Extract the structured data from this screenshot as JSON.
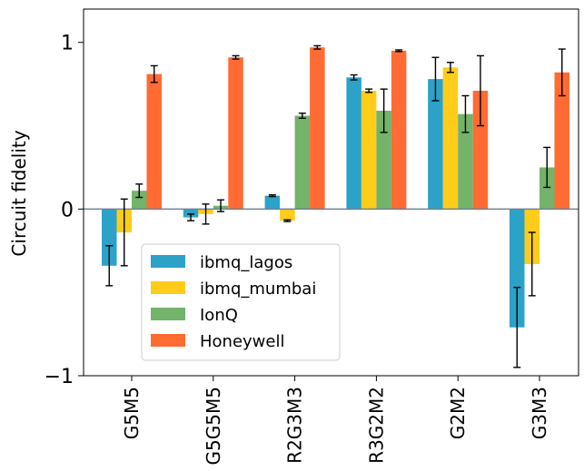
{
  "chart_data": {
    "type": "bar",
    "title": "",
    "xlabel": "",
    "ylabel": "Circuit fidelity",
    "ylim": [
      -1,
      1.2
    ],
    "yticks": [
      {
        "value": -1,
        "label": "−1"
      },
      {
        "value": 0,
        "label": "0"
      },
      {
        "value": 1,
        "label": "1"
      }
    ],
    "categories": [
      "G5M5",
      "G5G5M5",
      "R2G3M3",
      "R3G2M2",
      "G2M2",
      "G3M3"
    ],
    "grid": false,
    "legend_position": "lower-left",
    "series": [
      {
        "name": "ibmq_lagos",
        "color": "#2ca2c8",
        "values": [
          -0.34,
          -0.05,
          0.08,
          0.79,
          0.78,
          -0.71
        ],
        "errors": [
          0.12,
          0.02,
          0.005,
          0.015,
          0.13,
          0.24
        ]
      },
      {
        "name": "ibmq_mumbai",
        "color": "#ffcc1a",
        "values": [
          -0.14,
          -0.03,
          -0.07,
          0.71,
          0.85,
          -0.33
        ],
        "errors": [
          0.2,
          0.06,
          0.005,
          0.01,
          0.03,
          0.19
        ]
      },
      {
        "name": "IonQ",
        "color": "#73b36a",
        "values": [
          0.11,
          0.02,
          0.56,
          0.59,
          0.57,
          0.25
        ],
        "errors": [
          0.04,
          0.035,
          0.015,
          0.13,
          0.11,
          0.12
        ]
      },
      {
        "name": "Honeywell",
        "color": "#ff6b33",
        "values": [
          0.81,
          0.91,
          0.97,
          0.95,
          0.71,
          0.82
        ],
        "errors": [
          0.05,
          0.01,
          0.01,
          0.005,
          0.21,
          0.14
        ]
      }
    ]
  }
}
